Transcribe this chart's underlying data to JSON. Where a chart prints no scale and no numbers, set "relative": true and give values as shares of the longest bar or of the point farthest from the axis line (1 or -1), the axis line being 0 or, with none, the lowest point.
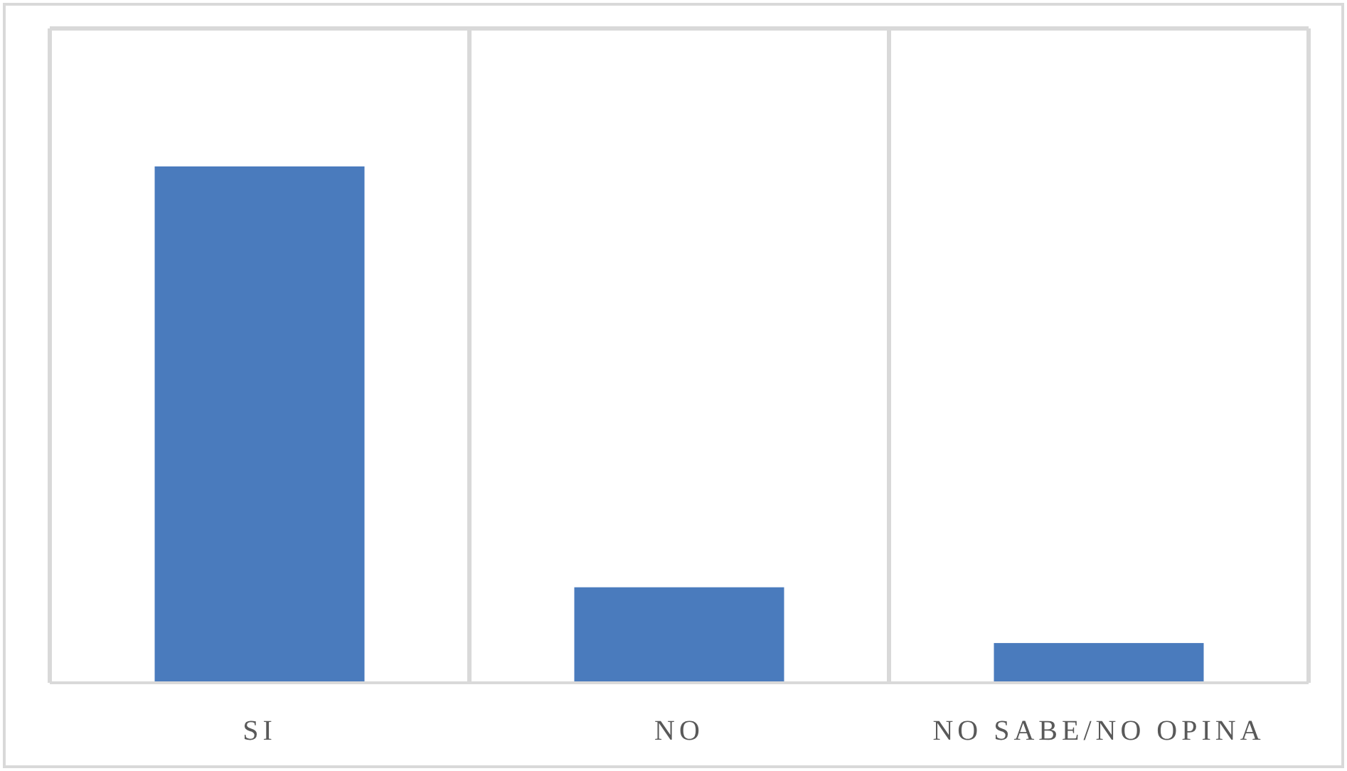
{
  "chart_data": {
    "type": "bar",
    "relative": true,
    "categories": [
      "SI",
      "NO",
      "NO SABE/NO OPINA"
    ],
    "values": [
      1,
      0.185,
      0.077
    ],
    "color": "#4a7bbd",
    "grid": "x"
  }
}
